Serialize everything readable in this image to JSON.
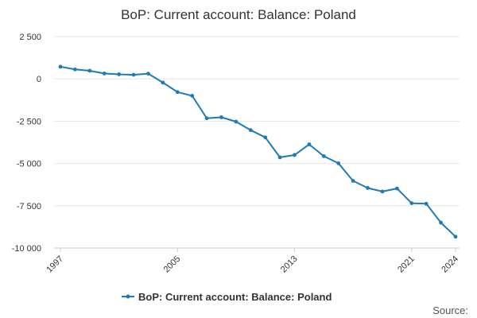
{
  "chart_data": {
    "type": "line",
    "title": "BoP: Current account: Balance: Poland",
    "xlabel": "",
    "ylabel": "",
    "ylim": [
      -10000,
      2500
    ],
    "xlim": [
      1997,
      2024
    ],
    "y_ticks": [
      {
        "value": 2500,
        "label": "2 500"
      },
      {
        "value": 0,
        "label": "0"
      },
      {
        "value": -2500,
        "label": "-2 500"
      },
      {
        "value": -5000,
        "label": "-5 000"
      },
      {
        "value": -7500,
        "label": "-7 500"
      },
      {
        "value": -10000,
        "label": "-10 000"
      }
    ],
    "x_ticks": [
      {
        "value": 1997,
        "label": "1997"
      },
      {
        "value": 2005,
        "label": "2005"
      },
      {
        "value": 2013,
        "label": "2013"
      },
      {
        "value": 2021,
        "label": "2021"
      },
      {
        "value": 2024,
        "label": "2024"
      }
    ],
    "grid": true,
    "legend_position": "bottom",
    "series": [
      {
        "name": "BoP: Current account: Balance: Poland",
        "color": "#1f7ab8",
        "x": [
          1997,
          1998,
          1999,
          2000,
          2001,
          2002,
          2003,
          2004,
          2005,
          2006,
          2007,
          2008,
          2009,
          2010,
          2011,
          2012,
          2013,
          2014,
          2015,
          2016,
          2017,
          2018,
          2019,
          2020,
          2021,
          2022,
          2023,
          2024
        ],
        "y": [
          720,
          560,
          480,
          320,
          270,
          240,
          310,
          -220,
          -780,
          -1000,
          -2330,
          -2270,
          -2530,
          -3030,
          -3460,
          -4640,
          -4500,
          -3870,
          -4570,
          -4990,
          -6030,
          -6450,
          -6660,
          -6480,
          -7350,
          -7380,
          -8500,
          -9330
        ]
      }
    ]
  },
  "source_label": "Source:"
}
